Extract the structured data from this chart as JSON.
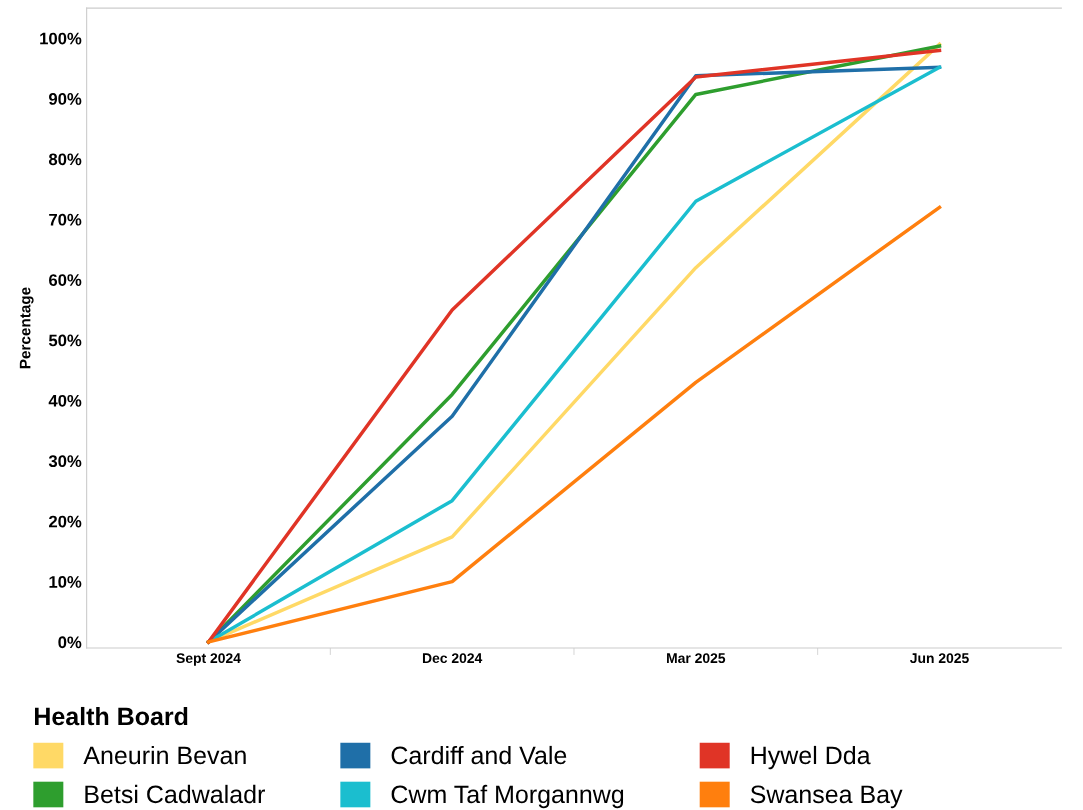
{
  "chart_data": {
    "type": "line",
    "ylabel": "Percentage",
    "legend_title": "Health Board",
    "legend": "bottom",
    "grid": false,
    "marker": "none",
    "line_style": "solid",
    "categories": [
      "Sept 2024",
      "Dec 2024",
      "Mar 2025",
      "Jun 2025"
    ],
    "ylim": [
      -1,
      105
    ],
    "yticks": [
      {
        "value": 0,
        "label": "0%"
      },
      {
        "value": 10,
        "label": "10%"
      },
      {
        "value": 20,
        "label": "20%"
      },
      {
        "value": 30,
        "label": "30%"
      },
      {
        "value": 40,
        "label": "40%"
      },
      {
        "value": 50,
        "label": "50%"
      },
      {
        "value": 60,
        "label": "60%"
      },
      {
        "value": 70,
        "label": "70%"
      },
      {
        "value": 80,
        "label": "80%"
      },
      {
        "value": 90,
        "label": "90%"
      },
      {
        "value": 100,
        "label": "100%"
      }
    ],
    "series": [
      {
        "name": "Aneurin Bevan",
        "color": "#ffd966",
        "values": [
          0,
          17.4,
          62,
          99
        ]
      },
      {
        "name": "Betsi Cadwaladr",
        "color": "#2e9e2e",
        "values": [
          0,
          41,
          90.7,
          98.7
        ]
      },
      {
        "name": "Cardiff and Vale",
        "color": "#1f6fa8",
        "values": [
          0,
          37.4,
          93.8,
          95.2
        ]
      },
      {
        "name": "Cwm Taf Morgannwg",
        "color": "#1bbecf",
        "values": [
          0,
          23.4,
          73,
          95.2
        ]
      },
      {
        "name": "Hywel Dda",
        "color": "#e03426",
        "values": [
          0,
          55,
          93.6,
          98
        ]
      },
      {
        "name": "Swansea Bay",
        "color": "#ff7f0e",
        "values": [
          0,
          10,
          43,
          72
        ]
      }
    ]
  }
}
